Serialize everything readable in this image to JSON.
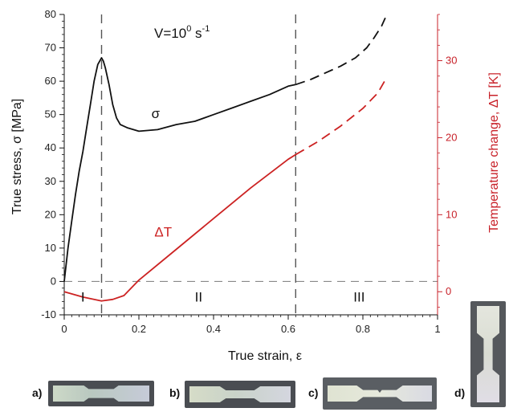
{
  "chart_data": {
    "type": "line",
    "annotation": "V=10",
    "annotation_exp": "0",
    "annotation_unit": " s",
    "annotation_unit_exp": "-1",
    "xlabel": "True strain, ε",
    "ylabel": "True stress, σ [MPa]",
    "y2label": "Temperature change, ΔT [K]",
    "xlim": [
      0,
      1
    ],
    "ylim": [
      -10,
      80
    ],
    "y2lim": [
      -3.0,
      36.0
    ],
    "x_ticks": [
      0,
      0.2,
      0.4,
      0.6,
      0.8,
      1
    ],
    "x_tick_labels": [
      "0",
      "0.2",
      "0.4",
      "0.6",
      "0.8",
      "1"
    ],
    "y_ticks": [
      -10,
      0,
      10,
      20,
      30,
      40,
      50,
      60,
      70,
      80
    ],
    "y2_ticks": [
      0,
      10,
      20,
      30
    ],
    "vlines": [
      0.1,
      0.62
    ],
    "hline_y": 0,
    "regions": [
      {
        "label": "I",
        "x": 0.05
      },
      {
        "label": "II",
        "x": 0.36
      },
      {
        "label": "III",
        "x": 0.79
      }
    ],
    "series": [
      {
        "name": "σ",
        "axis": "left",
        "color": "#111111",
        "solid": [
          [
            0,
            0
          ],
          [
            0.01,
            10
          ],
          [
            0.02,
            18
          ],
          [
            0.03,
            26
          ],
          [
            0.04,
            33
          ],
          [
            0.05,
            39
          ],
          [
            0.06,
            46
          ],
          [
            0.07,
            53
          ],
          [
            0.08,
            60
          ],
          [
            0.09,
            65
          ],
          [
            0.1,
            67
          ],
          [
            0.105,
            66
          ],
          [
            0.11,
            64
          ],
          [
            0.12,
            59
          ],
          [
            0.13,
            53
          ],
          [
            0.14,
            49
          ],
          [
            0.15,
            47
          ],
          [
            0.17,
            46
          ],
          [
            0.2,
            45
          ],
          [
            0.25,
            45.5
          ],
          [
            0.3,
            47
          ],
          [
            0.35,
            48
          ],
          [
            0.4,
            50
          ],
          [
            0.45,
            52
          ],
          [
            0.5,
            54
          ],
          [
            0.55,
            56
          ],
          [
            0.6,
            58.5
          ],
          [
            0.62,
            59
          ]
        ],
        "dashed": [
          [
            0.62,
            59
          ],
          [
            0.66,
            60.5
          ],
          [
            0.7,
            62.5
          ],
          [
            0.74,
            64.5
          ],
          [
            0.78,
            67
          ],
          [
            0.81,
            70
          ],
          [
            0.83,
            73
          ],
          [
            0.85,
            76.5
          ],
          [
            0.86,
            79
          ]
        ]
      },
      {
        "name": "ΔT",
        "axis": "right",
        "color": "#cc2222",
        "solid": [
          [
            0,
            0
          ],
          [
            0.05,
            -0.7
          ],
          [
            0.1,
            -1.2
          ],
          [
            0.13,
            -1
          ],
          [
            0.16,
            -0.5
          ],
          [
            0.2,
            1.5
          ],
          [
            0.3,
            5.5
          ],
          [
            0.4,
            9.5
          ],
          [
            0.5,
            13.5
          ],
          [
            0.6,
            17.2
          ],
          [
            0.62,
            17.8
          ]
        ],
        "dashed": [
          [
            0.62,
            17.8
          ],
          [
            0.68,
            19.5
          ],
          [
            0.74,
            21.5
          ],
          [
            0.8,
            23.8
          ],
          [
            0.84,
            25.8
          ],
          [
            0.86,
            27.5
          ]
        ]
      }
    ],
    "series_labels": [
      {
        "text": "σ",
        "x": 0.245,
        "y": 49,
        "axis": "left"
      },
      {
        "text": "ΔT",
        "x": 0.265,
        "y": 13.5,
        "axis": "left"
      }
    ]
  },
  "photos": [
    {
      "label": "a)"
    },
    {
      "label": "b)"
    },
    {
      "label": "c)"
    },
    {
      "label": "d)"
    }
  ],
  "colors": {
    "axis_left": "#111111",
    "axis_right": "#c8222a",
    "series_stress": "#111111",
    "series_temp": "#cc2222",
    "guide_dash": "#555555"
  }
}
